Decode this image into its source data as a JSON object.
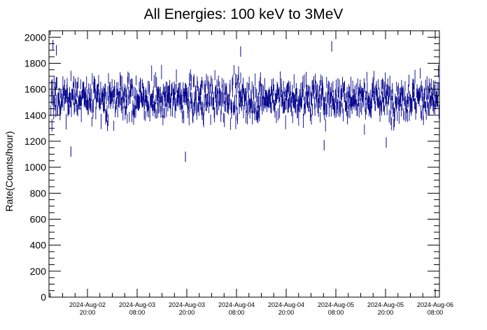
{
  "chart_data": {
    "type": "line",
    "title": "All Energies:  100 keV to 3MeV",
    "ylabel": "Rate(Counts/hour)",
    "xlabel": "",
    "ylim": [
      0,
      2050
    ],
    "y_ticks": [
      "0",
      "200",
      "400",
      "600",
      "800",
      "1000",
      "1200",
      "1400",
      "1600",
      "1800",
      "2000"
    ],
    "x_ticks": [
      {
        "date": "2024-Aug-02",
        "time": "20:00"
      },
      {
        "date": "2024-Aug-03",
        "time": "08:00"
      },
      {
        "date": "2024-Aug-03",
        "time": "20:00"
      },
      {
        "date": "2024-Aug-04",
        "time": "08:00"
      },
      {
        "date": "2024-Aug-04",
        "time": "20:00"
      },
      {
        "date": "2024-Aug-05",
        "time": "08:00"
      },
      {
        "date": "2024-Aug-05",
        "time": "20:00"
      },
      {
        "date": "2024-Aug-06",
        "time": "08:00"
      }
    ],
    "series_summary": {
      "start": "2024-Aug-02 11:10",
      "end": "2024-Aug-06 09:00",
      "mean": 1530,
      "typical_low": 1300,
      "typical_high": 1750,
      "min": 1080,
      "max": 1940
    },
    "outliers": [
      {
        "x": "2024-Aug-02 11:40",
        "y": 1940
      },
      {
        "x": "2024-Aug-02 12:30",
        "y": 1900
      },
      {
        "x": "2024-Aug-02 16:00",
        "y": 1120
      },
      {
        "x": "2024-Aug-03 19:40",
        "y": 1080
      },
      {
        "x": "2024-Aug-04 09:00",
        "y": 1890
      },
      {
        "x": "2024-Aug-05 05:10",
        "y": 1170
      },
      {
        "x": "2024-Aug-05 07:00",
        "y": 1930
      },
      {
        "x": "2024-Aug-05 20:10",
        "y": 1190
      }
    ],
    "line_color": "#00008b",
    "grid": false
  }
}
